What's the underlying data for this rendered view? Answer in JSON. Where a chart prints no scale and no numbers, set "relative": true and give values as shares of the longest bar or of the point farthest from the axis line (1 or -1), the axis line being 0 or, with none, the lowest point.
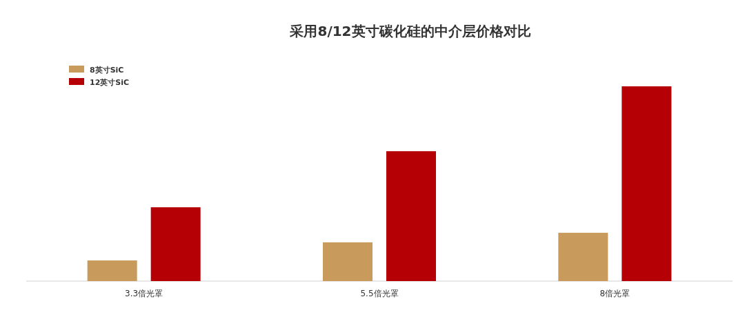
{
  "chart_data": {
    "type": "bar",
    "title": "采用8/12英寸碳化硅的中介层价格对比",
    "relative": true,
    "categories": [
      "3.3倍光罩",
      "5.5倍光罩",
      "8倍光罩"
    ],
    "series": [
      {
        "name": "8英寸SiC",
        "color": "#c89b5c",
        "values": [
          0.106,
          0.199,
          0.248
        ]
      },
      {
        "name": "12英寸SiC",
        "color": "#b50005",
        "values": [
          0.379,
          0.667,
          1
        ]
      }
    ],
    "legend": "top left"
  }
}
